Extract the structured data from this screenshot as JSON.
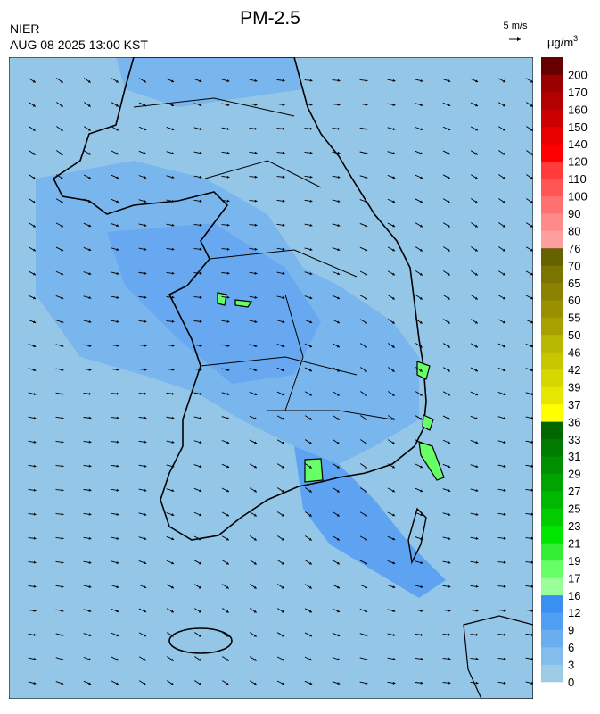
{
  "header": {
    "title": "PM-2.5",
    "agency": "NIER",
    "timestamp": "AUG 08 2025 13:00 KST"
  },
  "wind_scale": {
    "label": "5 m/s"
  },
  "colorbar": {
    "unit": "μg/m",
    "unit_exponent": "3",
    "levels": [
      0,
      3,
      6,
      9,
      12,
      16,
      17,
      19,
      21,
      23,
      25,
      27,
      29,
      31,
      33,
      36,
      37,
      39,
      42,
      46,
      50,
      55,
      60,
      65,
      70,
      76,
      80,
      90,
      100,
      110,
      120,
      140,
      150,
      160,
      170,
      200
    ],
    "colors": [
      "#9ccbe6",
      "#82bded",
      "#68aef0",
      "#4f9ff2",
      "#3a8ff2",
      "#99ff99",
      "#66ff66",
      "#33ee33",
      "#00e600",
      "#00cc00",
      "#00b800",
      "#00a300",
      "#008f00",
      "#007a00",
      "#006600",
      "#ffff00",
      "#e6e600",
      "#d6d600",
      "#c7c700",
      "#b8b800",
      "#a8a000",
      "#999000",
      "#8a8200",
      "#7a7400",
      "#666200",
      "#ff9e9e",
      "#ff8a8a",
      "#ff7070",
      "#ff5555",
      "#ff3b3b",
      "#ff0000",
      "#e60000",
      "#cc0000",
      "#b30000",
      "#990000",
      "#660000"
    ]
  }
}
